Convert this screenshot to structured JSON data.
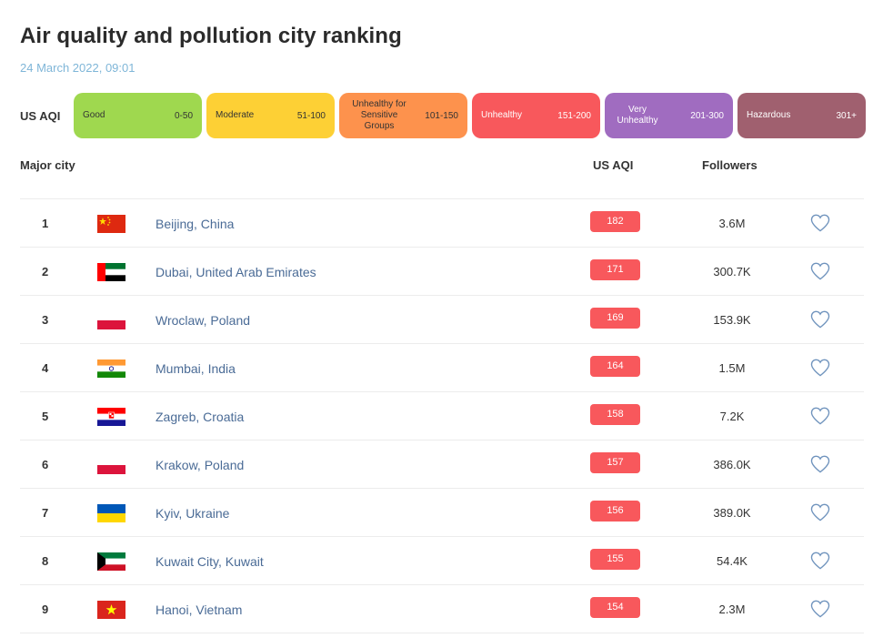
{
  "page": {
    "title": "Air quality and pollution city ranking",
    "timestamp": "24 March 2022, 09:01"
  },
  "legend": {
    "label": "US AQI",
    "bands": [
      {
        "name": "Good",
        "range": "0-50",
        "color": "#9fd84f",
        "text": "dark"
      },
      {
        "name": "Moderate",
        "range": "51-100",
        "color": "#fdd035",
        "text": "dark"
      },
      {
        "name": "Unhealthy for Sensitive Groups",
        "range": "101-150",
        "color": "#fd924d",
        "text": "dark"
      },
      {
        "name": "Unhealthy",
        "range": "151-200",
        "color": "#f8585c",
        "text": "light"
      },
      {
        "name": "Very Unhealthy",
        "range": "201-300",
        "color": "#a06cc0",
        "text": "light"
      },
      {
        "name": "Hazardous",
        "range": "301+",
        "color": "#a0606f",
        "text": "light"
      }
    ]
  },
  "table": {
    "headers": {
      "city": "Major city",
      "aqi": "US AQI",
      "followers": "Followers"
    },
    "rows": [
      {
        "rank": "1",
        "flag": "china-flag-icon",
        "city": "Beijing, China",
        "aqi": "182",
        "followers": "3.6M"
      },
      {
        "rank": "2",
        "flag": "uae-flag-icon",
        "city": "Dubai, United Arab Emirates",
        "aqi": "171",
        "followers": "300.7K"
      },
      {
        "rank": "3",
        "flag": "poland-flag-icon",
        "city": "Wroclaw, Poland",
        "aqi": "169",
        "followers": "153.9K"
      },
      {
        "rank": "4",
        "flag": "india-flag-icon",
        "city": "Mumbai, India",
        "aqi": "164",
        "followers": "1.5M"
      },
      {
        "rank": "5",
        "flag": "croatia-flag-icon",
        "city": "Zagreb, Croatia",
        "aqi": "158",
        "followers": "7.2K"
      },
      {
        "rank": "6",
        "flag": "poland-flag-icon",
        "city": "Krakow, Poland",
        "aqi": "157",
        "followers": "386.0K"
      },
      {
        "rank": "7",
        "flag": "ukraine-flag-icon",
        "city": "Kyiv, Ukraine",
        "aqi": "156",
        "followers": "389.0K"
      },
      {
        "rank": "8",
        "flag": "kuwait-flag-icon",
        "city": "Kuwait City, Kuwait",
        "aqi": "155",
        "followers": "54.4K"
      },
      {
        "rank": "9",
        "flag": "vietnam-flag-icon",
        "city": "Hanoi, Vietnam",
        "aqi": "154",
        "followers": "2.3M"
      }
    ]
  },
  "icons": {
    "follow": "heart-outline-icon"
  },
  "colors": {
    "aqi_badge": "#f8585c",
    "city_link": "#4a6b96",
    "timestamp": "#7fb6d8",
    "heart": "#6f93bd"
  }
}
